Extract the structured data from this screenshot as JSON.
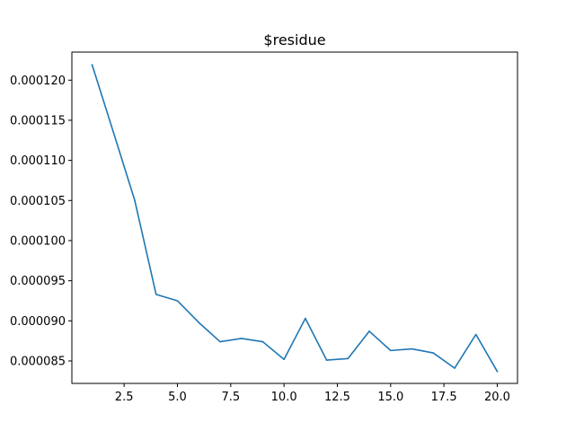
{
  "chart_data": {
    "type": "line",
    "title": "$residue",
    "xlabel": "",
    "ylabel": "",
    "grid": false,
    "legend": false,
    "xlim": [
      0.05,
      20.95
    ],
    "ylim": [
      8.22e-05,
      0.0001235
    ],
    "x_ticks": [
      2.5,
      5.0,
      7.5,
      10.0,
      12.5,
      15.0,
      17.5,
      20.0
    ],
    "x_tick_labels": [
      "2.5",
      "5.0",
      "7.5",
      "10.0",
      "12.5",
      "15.0",
      "17.5",
      "20.0"
    ],
    "y_ticks": [
      8.5e-05,
      9e-05,
      9.5e-05,
      0.0001,
      0.000105,
      0.00011,
      0.000115,
      0.00012
    ],
    "y_tick_labels": [
      "0.000085",
      "0.000090",
      "0.000095",
      "0.000100",
      "0.000105",
      "0.000110",
      "0.000115",
      "0.000120"
    ],
    "series": [
      {
        "color": "#1f77b4",
        "x": [
          1,
          2,
          3,
          4,
          5,
          6,
          7,
          8,
          9,
          10,
          11,
          12,
          13,
          14,
          15,
          16,
          17,
          18,
          19,
          20
        ],
        "y": [
          0.0001219,
          0.0001135,
          0.000105,
          9.33e-05,
          9.25e-05,
          8.98e-05,
          8.74e-05,
          8.78e-05,
          8.74e-05,
          8.52e-05,
          9.03e-05,
          8.51e-05,
          8.53e-05,
          8.87e-05,
          8.63e-05,
          8.65e-05,
          8.6e-05,
          8.41e-05,
          8.83e-05,
          8.37e-05
        ]
      }
    ]
  }
}
